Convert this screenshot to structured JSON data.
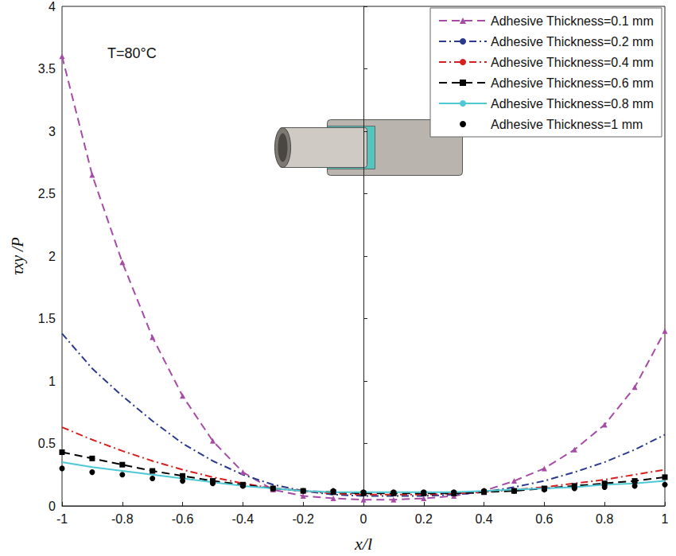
{
  "chart_data": {
    "type": "line",
    "annotation": "T=80°C",
    "x_label": "x/l",
    "y_label": "τxy /P",
    "x": [
      -1,
      -0.9,
      -0.8,
      -0.7,
      -0.6,
      -0.5,
      -0.4,
      -0.3,
      -0.2,
      -0.1,
      0,
      0.1,
      0.2,
      0.3,
      0.4,
      0.5,
      0.6,
      0.7,
      0.8,
      0.9,
      1
    ],
    "series": [
      {
        "name": "Adhesive Thickness=0.1 mm",
        "color": "#a64ca6",
        "marker": "triangle",
        "line_style": "dashed",
        "values": [
          3.6,
          2.65,
          1.95,
          1.35,
          0.88,
          0.52,
          0.27,
          0.13,
          0.08,
          0.06,
          0.05,
          0.05,
          0.06,
          0.08,
          0.12,
          0.2,
          0.3,
          0.45,
          0.65,
          0.95,
          1.4
        ]
      },
      {
        "name": "Adhesive Thickness=0.2 mm",
        "color": "#2b3a8c",
        "marker": "none",
        "line_style": "dashdot",
        "values": [
          1.38,
          1.1,
          0.88,
          0.68,
          0.5,
          0.36,
          0.25,
          0.17,
          0.12,
          0.09,
          0.08,
          0.08,
          0.08,
          0.09,
          0.11,
          0.15,
          0.2,
          0.27,
          0.35,
          0.45,
          0.57
        ]
      },
      {
        "name": "Adhesive Thickness=0.4 mm",
        "color": "#d62020",
        "marker": "none",
        "line_style": "dashdot",
        "values": [
          0.63,
          0.53,
          0.44,
          0.36,
          0.29,
          0.23,
          0.18,
          0.14,
          0.12,
          0.1,
          0.09,
          0.09,
          0.09,
          0.1,
          0.11,
          0.13,
          0.15,
          0.18,
          0.21,
          0.25,
          0.29
        ]
      },
      {
        "name": "Adhesive Thickness=0.6 mm",
        "color": "#000000",
        "marker": "square",
        "line_style": "dashed",
        "values": [
          0.43,
          0.38,
          0.33,
          0.28,
          0.24,
          0.2,
          0.17,
          0.14,
          0.12,
          0.11,
          0.1,
          0.1,
          0.1,
          0.1,
          0.11,
          0.12,
          0.14,
          0.16,
          0.18,
          0.2,
          0.23
        ]
      },
      {
        "name": "Adhesive Thickness=0.8 mm",
        "color": "#4ec9d4",
        "marker": "none",
        "line_style": "solid",
        "values": [
          0.35,
          0.31,
          0.28,
          0.25,
          0.22,
          0.19,
          0.16,
          0.14,
          0.12,
          0.11,
          0.11,
          0.11,
          0.11,
          0.11,
          0.12,
          0.13,
          0.14,
          0.15,
          0.17,
          0.18,
          0.2
        ]
      },
      {
        "name": "Adhesive Thickness=1 mm",
        "color": "#000000",
        "marker": "circle",
        "line_style": "none",
        "values": [
          0.3,
          0.27,
          0.25,
          0.22,
          0.2,
          0.18,
          0.16,
          0.14,
          0.12,
          0.12,
          0.11,
          0.11,
          0.11,
          0.11,
          0.12,
          0.12,
          0.13,
          0.14,
          0.15,
          0.16,
          0.17
        ]
      }
    ],
    "xlim": [
      -1,
      1
    ],
    "xticks": [
      -1,
      -0.8,
      -0.6,
      -0.4,
      -0.2,
      0,
      0.2,
      0.4,
      0.6,
      0.8,
      1
    ],
    "ylim": [
      0,
      4
    ],
    "yticks": [
      0,
      0.5,
      1,
      1.5,
      2,
      2.5,
      3,
      3.5,
      4
    ],
    "grid": false,
    "legend": "top-right"
  }
}
